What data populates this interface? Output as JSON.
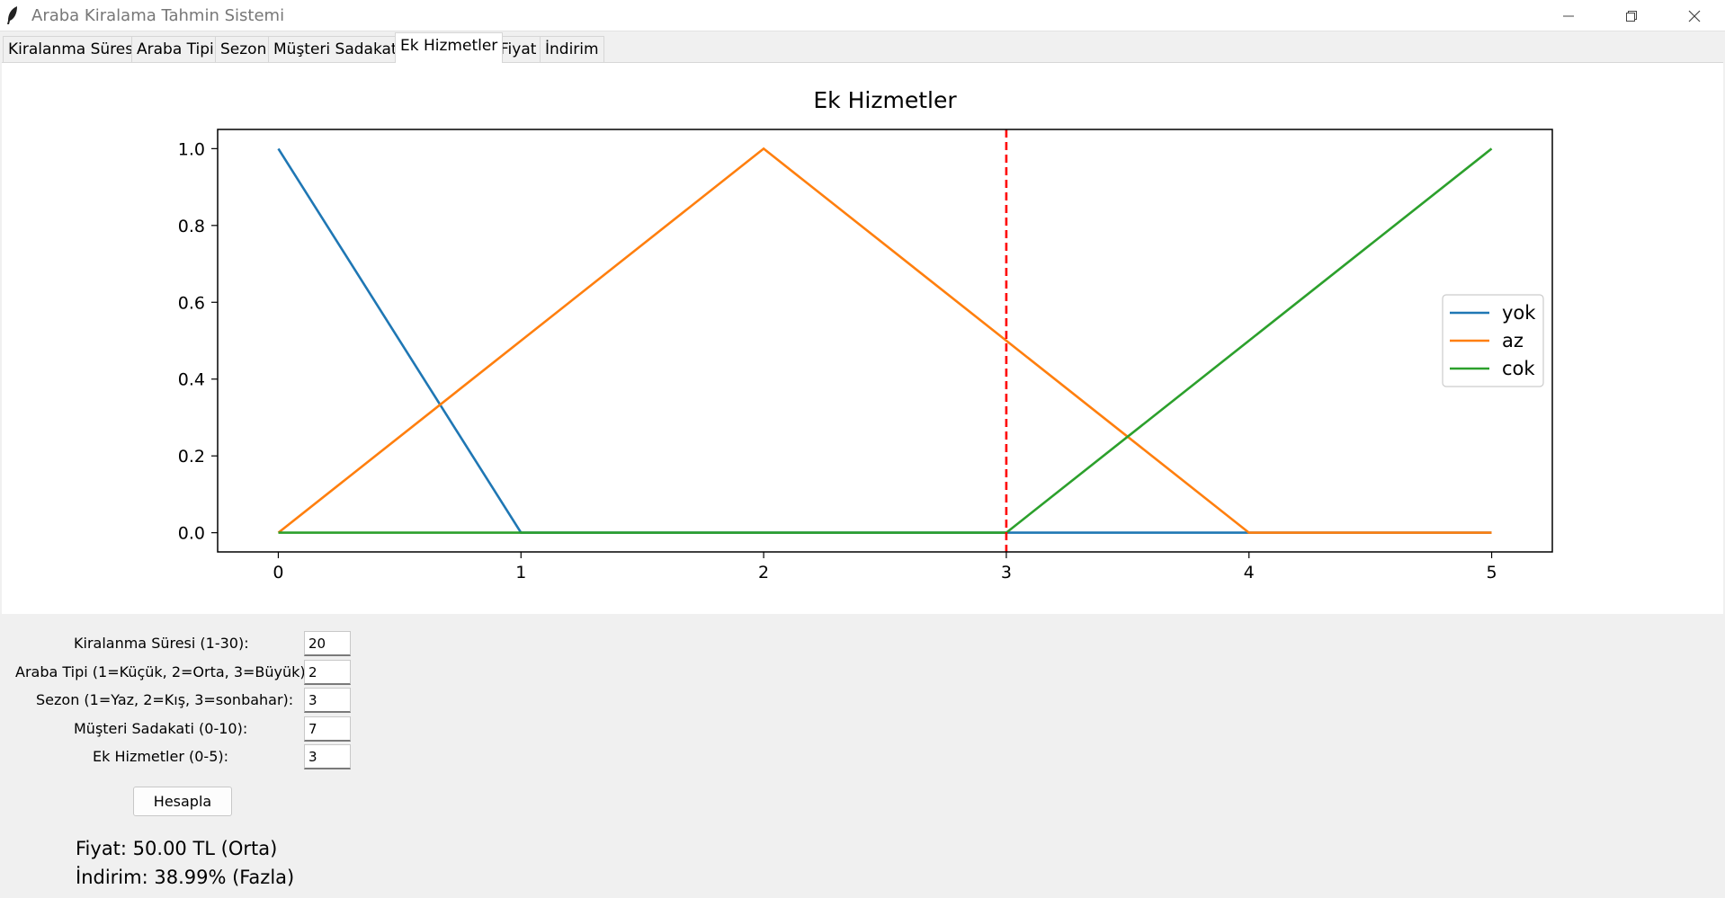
{
  "window": {
    "title": "Araba Kiralama Tahmin Sistemi",
    "icon": "feather-icon"
  },
  "tabs": [
    {
      "label": "Kiralanma Süresi"
    },
    {
      "label": "Araba Tipi"
    },
    {
      "label": "Sezon"
    },
    {
      "label": "Müşteri Sadakati"
    },
    {
      "label": "Ek Hizmetler",
      "active": true
    },
    {
      "label": "Fiyat"
    },
    {
      "label": "İndirim"
    }
  ],
  "chart_data": {
    "type": "line",
    "title": "Ek Hizmetler",
    "xlabel": "",
    "ylabel": "",
    "xlim": [
      -0.25,
      5.25
    ],
    "ylim": [
      -0.05,
      1.05
    ],
    "x_ticks": [
      "0",
      "1",
      "2",
      "3",
      "4",
      "5"
    ],
    "y_ticks": [
      "0.0",
      "0.2",
      "0.4",
      "0.6",
      "0.8",
      "1.0"
    ],
    "legend_position": "center-right",
    "grid": false,
    "series": [
      {
        "name": "yok",
        "color": "#1f77b4",
        "x": [
          0,
          1,
          2,
          3,
          4,
          5
        ],
        "y": [
          1,
          0,
          0,
          0,
          0,
          0
        ]
      },
      {
        "name": "az",
        "color": "#ff7f0e",
        "x": [
          0,
          1,
          2,
          3,
          4,
          5
        ],
        "y": [
          0,
          0.5,
          1,
          0.5,
          0,
          0
        ]
      },
      {
        "name": "cok",
        "color": "#2ca02c",
        "x": [
          0,
          1,
          2,
          3,
          4,
          5
        ],
        "y": [
          0,
          0,
          0,
          0,
          0.5,
          1
        ]
      }
    ],
    "marker_line": {
      "x": 3,
      "color": "#ff0000",
      "style": "dashed"
    }
  },
  "form": {
    "fields": [
      {
        "label": "Kiralanma Süresi (1-30):",
        "value": "20"
      },
      {
        "label": "Araba Tipi (1=Küçük, 2=Orta, 3=Büyük):",
        "value": "2"
      },
      {
        "label": "Sezon (1=Yaz, 2=Kış, 3=sonbahar):",
        "value": "3"
      },
      {
        "label": "Müşteri Sadakati (0-10):",
        "value": "7"
      },
      {
        "label": "Ek Hizmetler (0-5):",
        "value": "3"
      }
    ],
    "button_label": "Hesapla"
  },
  "results": {
    "price": "Fiyat: 50.00 TL (Orta)",
    "discount": "İndirim: 38.99% (Fazla)"
  }
}
